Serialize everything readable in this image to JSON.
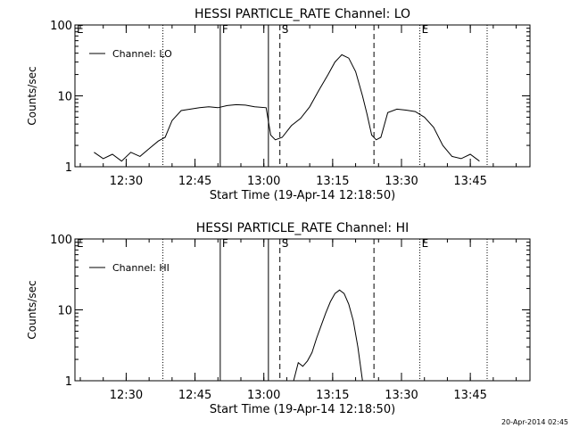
{
  "chart_data": [
    {
      "type": "line",
      "title": "HESSI PARTICLE_RATE Channel: LO",
      "xlabel": "Start Time (19-Apr-14 12:18:50)",
      "ylabel": "Counts/sec",
      "yscale": "log",
      "ylim": [
        1,
        100
      ],
      "xlim": [
        "12:18:50",
        "13:58:00"
      ],
      "x_ticks": [
        "12:30",
        "12:45",
        "13:00",
        "13:15",
        "13:30",
        "13:45"
      ],
      "y_ticks": [
        "1",
        "10",
        "100"
      ],
      "legend": {
        "label": "Channel: LO",
        "position": "top-left"
      },
      "markers": [
        {
          "label": "E",
          "time": "12:18:50",
          "style": "none"
        },
        {
          "label": "",
          "time": "12:38:00",
          "style": "dotted"
        },
        {
          "label": "F",
          "time": "12:50:30",
          "style": "solid"
        },
        {
          "label": "",
          "time": "13:01:00",
          "style": "solid"
        },
        {
          "label": "S",
          "time": "13:03:30",
          "style": "dashed"
        },
        {
          "label": "",
          "time": "13:24:00",
          "style": "dashed"
        },
        {
          "label": "E",
          "time": "13:34:00",
          "style": "dotted"
        },
        {
          "label": "",
          "time": "13:48:40",
          "style": "dotted"
        }
      ],
      "series": [
        {
          "name": "Channel: LO",
          "x": [
            "12:23:00",
            "12:25:00",
            "12:27:00",
            "12:29:00",
            "12:31:00",
            "12:33:00",
            "12:35:00",
            "12:37:00",
            "12:38:30",
            "12:40:00",
            "12:42:00",
            "12:44:00",
            "12:46:00",
            "12:48:00",
            "12:50:00",
            "12:52:00",
            "12:54:00",
            "12:56:00",
            "12:58:00",
            "13:00:30",
            "13:01:30",
            "13:02:30",
            "13:04:00",
            "13:06:00",
            "13:08:00",
            "13:10:00",
            "13:12:00",
            "13:14:00",
            "13:15:30",
            "13:17:00",
            "13:18:30",
            "13:20:00",
            "13:21:30",
            "13:22:30",
            "13:23:30",
            "13:24:30",
            "13:25:30",
            "13:27:00",
            "13:29:00",
            "13:31:00",
            "13:33:00",
            "13:35:00",
            "13:37:00",
            "13:39:00",
            "13:41:00",
            "13:43:00",
            "13:45:00",
            "13:47:00"
          ],
          "y": [
            1.6,
            1.3,
            1.5,
            1.2,
            1.6,
            1.4,
            1.8,
            2.3,
            2.6,
            4.5,
            6.2,
            6.5,
            6.8,
            7.0,
            6.8,
            7.3,
            7.5,
            7.4,
            7.0,
            6.8,
            2.8,
            2.4,
            2.6,
            3.8,
            4.8,
            7.0,
            12,
            20,
            30,
            38,
            34,
            22,
            10,
            5.5,
            2.8,
            2.4,
            2.6,
            5.8,
            6.5,
            6.3,
            6.0,
            5.0,
            3.6,
            2.0,
            1.4,
            1.3,
            1.5,
            1.2
          ]
        }
      ]
    },
    {
      "type": "line",
      "title": "HESSI PARTICLE_RATE Channel: HI",
      "xlabel": "Start Time (19-Apr-14 12:18:50)",
      "ylabel": "Counts/sec",
      "yscale": "log",
      "ylim": [
        1,
        100
      ],
      "xlim": [
        "12:18:50",
        "13:58:00"
      ],
      "x_ticks": [
        "12:30",
        "12:45",
        "13:00",
        "13:15",
        "13:30",
        "13:45"
      ],
      "y_ticks": [
        "1",
        "10",
        "100"
      ],
      "legend": {
        "label": "Channel: HI",
        "position": "top-left"
      },
      "markers": [
        {
          "label": "E",
          "time": "12:18:50",
          "style": "none"
        },
        {
          "label": "",
          "time": "12:38:00",
          "style": "dotted"
        },
        {
          "label": "F",
          "time": "12:50:30",
          "style": "solid"
        },
        {
          "label": "",
          "time": "13:01:00",
          "style": "solid"
        },
        {
          "label": "S",
          "time": "13:03:30",
          "style": "dashed"
        },
        {
          "label": "",
          "time": "13:24:00",
          "style": "dashed"
        },
        {
          "label": "E",
          "time": "13:34:00",
          "style": "dotted"
        },
        {
          "label": "",
          "time": "13:48:40",
          "style": "dotted"
        }
      ],
      "series": [
        {
          "name": "Channel: HI",
          "x": [
            "13:06:30",
            "13:07:30",
            "13:08:30",
            "13:09:30",
            "13:10:30",
            "13:11:30",
            "13:12:30",
            "13:13:30",
            "13:14:30",
            "13:15:30",
            "13:16:30",
            "13:17:30",
            "13:18:30",
            "13:19:30",
            "13:20:30",
            "13:21:30"
          ],
          "y": [
            1.0,
            1.8,
            1.6,
            1.9,
            2.5,
            4.0,
            6.0,
            9.0,
            13,
            17,
            19,
            17,
            12,
            7.0,
            3.0,
            1.0
          ]
        }
      ]
    }
  ],
  "footer": {
    "timestamp": "20-Apr-2014 02:45"
  }
}
